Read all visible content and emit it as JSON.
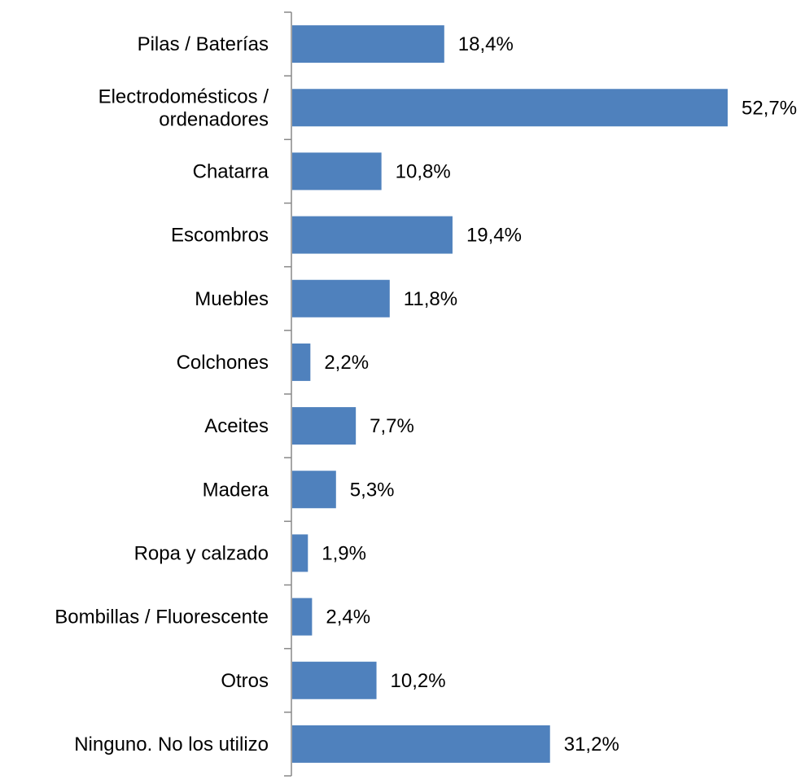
{
  "chart_data": {
    "type": "bar",
    "orientation": "horizontal",
    "categories": [
      [
        "Pilas / Baterías"
      ],
      [
        "Electrodomésticos /",
        "ordenadores"
      ],
      [
        "Chatarra"
      ],
      [
        "Escombros"
      ],
      [
        "Muebles"
      ],
      [
        "Colchones"
      ],
      [
        "Aceites"
      ],
      [
        "Madera"
      ],
      [
        "Ropa y calzado"
      ],
      [
        "Bombillas / Fluorescente"
      ],
      [
        "Otros"
      ],
      [
        "Ninguno. No los utilizo"
      ]
    ],
    "values": [
      18.4,
      52.7,
      10.8,
      19.4,
      11.8,
      2.2,
      7.7,
      5.3,
      1.9,
      2.4,
      10.2,
      31.2
    ],
    "value_labels": [
      "18,4%",
      "52,7%",
      "10,8%",
      "19,4%",
      "11,8%",
      "2,2%",
      "7,7%",
      "5,3%",
      "1,9%",
      "2,4%",
      "10,2%",
      "31,2%"
    ],
    "title": "",
    "xlabel": "",
    "ylabel": "",
    "xlim": [
      0,
      52.7
    ],
    "grid": false,
    "legend": "none",
    "bar_color": "#4f81bd",
    "axis_color": "#888888"
  }
}
